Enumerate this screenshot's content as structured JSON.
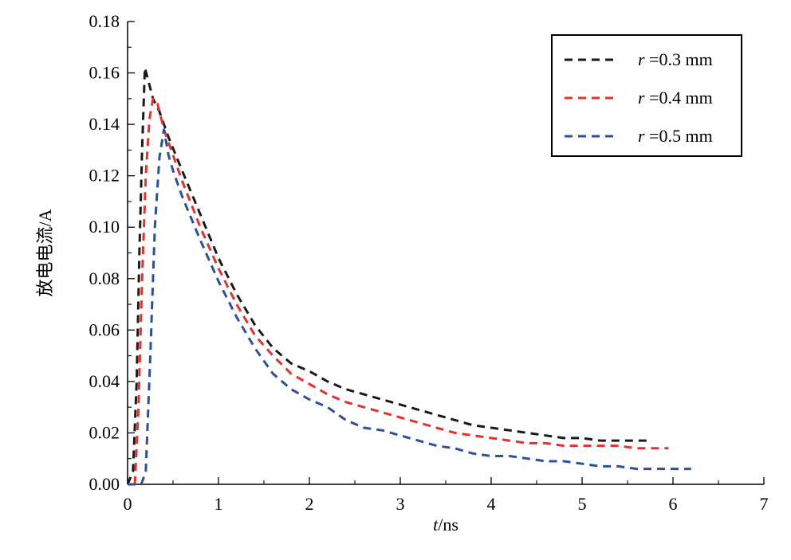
{
  "chart_data": {
    "type": "line",
    "xlabel_var": "t",
    "xlabel_unit": "/ns",
    "ylabel": "放电电流/A",
    "xlim": [
      0,
      7
    ],
    "ylim": [
      0,
      0.18
    ],
    "x_ticks": [
      "0",
      "1",
      "2",
      "3",
      "4",
      "5",
      "6",
      "7"
    ],
    "y_ticks": [
      "0.00",
      "0.02",
      "0.04",
      "0.06",
      "0.08",
      "0.10",
      "0.12",
      "0.14",
      "0.16",
      "0.18"
    ],
    "grid": false,
    "legend_position": "top-right",
    "series": [
      {
        "name": "r =0.3 mm",
        "name_var": "r",
        "name_rest": " =0.3 mm",
        "color": "#1a1a1a",
        "points": [
          [
            0,
            0
          ],
          [
            0.06,
            0.005
          ],
          [
            0.1,
            0.04
          ],
          [
            0.13,
            0.09
          ],
          [
            0.16,
            0.13
          ],
          [
            0.19,
            0.162
          ],
          [
            0.22,
            0.158
          ],
          [
            0.28,
            0.15
          ],
          [
            0.35,
            0.145
          ],
          [
            0.45,
            0.135
          ],
          [
            0.6,
            0.122
          ],
          [
            0.8,
            0.105
          ],
          [
            1.0,
            0.088
          ],
          [
            1.2,
            0.074
          ],
          [
            1.4,
            0.062
          ],
          [
            1.6,
            0.053
          ],
          [
            1.8,
            0.047
          ],
          [
            2.0,
            0.044
          ],
          [
            2.2,
            0.04
          ],
          [
            2.4,
            0.037
          ],
          [
            2.6,
            0.035
          ],
          [
            2.8,
            0.033
          ],
          [
            3.0,
            0.031
          ],
          [
            3.2,
            0.029
          ],
          [
            3.4,
            0.027
          ],
          [
            3.6,
            0.025
          ],
          [
            3.8,
            0.023
          ],
          [
            4.0,
            0.022
          ],
          [
            4.2,
            0.021
          ],
          [
            4.4,
            0.02
          ],
          [
            4.6,
            0.019
          ],
          [
            4.8,
            0.018
          ],
          [
            5.0,
            0.018
          ],
          [
            5.2,
            0.017
          ],
          [
            5.4,
            0.017
          ],
          [
            5.6,
            0.017
          ],
          [
            5.72,
            0.017
          ]
        ]
      },
      {
        "name": "r =0.4 mm",
        "name_var": "r",
        "name_rest": " =0.4 mm",
        "color": "#e8302a",
        "points": [
          [
            0.08,
            0
          ],
          [
            0.12,
            0.03
          ],
          [
            0.16,
            0.08
          ],
          [
            0.2,
            0.12
          ],
          [
            0.24,
            0.142
          ],
          [
            0.28,
            0.15
          ],
          [
            0.33,
            0.148
          ],
          [
            0.4,
            0.138
          ],
          [
            0.5,
            0.128
          ],
          [
            0.6,
            0.118
          ],
          [
            0.8,
            0.1
          ],
          [
            1.0,
            0.084
          ],
          [
            1.2,
            0.07
          ],
          [
            1.4,
            0.058
          ],
          [
            1.6,
            0.05
          ],
          [
            1.8,
            0.043
          ],
          [
            2.0,
            0.039
          ],
          [
            2.2,
            0.035
          ],
          [
            2.4,
            0.032
          ],
          [
            2.6,
            0.03
          ],
          [
            2.8,
            0.028
          ],
          [
            3.0,
            0.026
          ],
          [
            3.2,
            0.024
          ],
          [
            3.4,
            0.022
          ],
          [
            3.6,
            0.02
          ],
          [
            3.8,
            0.019
          ],
          [
            4.0,
            0.018
          ],
          [
            4.2,
            0.017
          ],
          [
            4.4,
            0.016
          ],
          [
            4.6,
            0.016
          ],
          [
            4.8,
            0.015
          ],
          [
            5.0,
            0.015
          ],
          [
            5.2,
            0.015
          ],
          [
            5.4,
            0.015
          ],
          [
            5.6,
            0.014
          ],
          [
            5.8,
            0.014
          ],
          [
            5.95,
            0.014
          ]
        ]
      },
      {
        "name": "r =0.5 mm",
        "name_var": "r",
        "name_rest": " =0.5 mm",
        "color": "#2a50a0",
        "points": [
          [
            0,
            0
          ],
          [
            0.15,
            0
          ],
          [
            0.2,
            0.005
          ],
          [
            0.25,
            0.05
          ],
          [
            0.3,
            0.1
          ],
          [
            0.35,
            0.127
          ],
          [
            0.4,
            0.138
          ],
          [
            0.45,
            0.128
          ],
          [
            0.5,
            0.122
          ],
          [
            0.6,
            0.112
          ],
          [
            0.8,
            0.095
          ],
          [
            1.0,
            0.079
          ],
          [
            1.2,
            0.065
          ],
          [
            1.4,
            0.053
          ],
          [
            1.6,
            0.043
          ],
          [
            1.8,
            0.037
          ],
          [
            2.0,
            0.033
          ],
          [
            2.2,
            0.03
          ],
          [
            2.4,
            0.025
          ],
          [
            2.6,
            0.022
          ],
          [
            2.8,
            0.021
          ],
          [
            3.0,
            0.019
          ],
          [
            3.2,
            0.017
          ],
          [
            3.4,
            0.015
          ],
          [
            3.6,
            0.014
          ],
          [
            3.8,
            0.012
          ],
          [
            4.0,
            0.011
          ],
          [
            4.2,
            0.011
          ],
          [
            4.4,
            0.01
          ],
          [
            4.6,
            0.009
          ],
          [
            4.8,
            0.009
          ],
          [
            5.0,
            0.008
          ],
          [
            5.2,
            0.007
          ],
          [
            5.4,
            0.007
          ],
          [
            5.6,
            0.006
          ],
          [
            5.8,
            0.006
          ],
          [
            6.0,
            0.006
          ],
          [
            6.2,
            0.006
          ]
        ]
      }
    ]
  }
}
